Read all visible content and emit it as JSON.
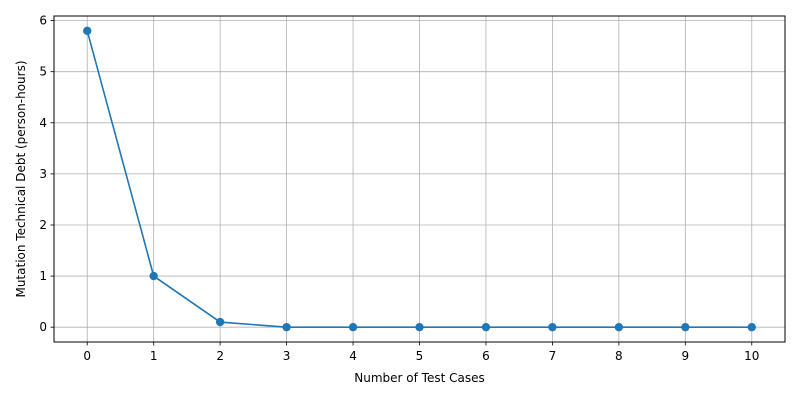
{
  "chart_data": {
    "type": "line",
    "title": "",
    "xlabel": "Number of Test Cases",
    "ylabel": "Mutation Technical Debt (person-hours)",
    "x": [
      0,
      1,
      2,
      3,
      4,
      5,
      6,
      7,
      8,
      9,
      10
    ],
    "series": [
      {
        "name": "",
        "values": [
          5.8,
          1.0,
          0.1,
          0.0,
          0.0,
          0.0,
          0.0,
          0.0,
          0.0,
          0.0,
          0.0
        ],
        "color": "#1f77b4",
        "marker": "circle"
      }
    ],
    "xticks": [
      "0",
      "1",
      "2",
      "3",
      "4",
      "5",
      "6",
      "7",
      "8",
      "9",
      "10"
    ],
    "yticks": [
      "0",
      "1",
      "2",
      "3",
      "4",
      "5",
      "6"
    ],
    "xlim": [
      -0.5,
      10.5
    ],
    "ylim": [
      -0.29,
      6.09
    ],
    "grid": true,
    "legend": "none"
  }
}
